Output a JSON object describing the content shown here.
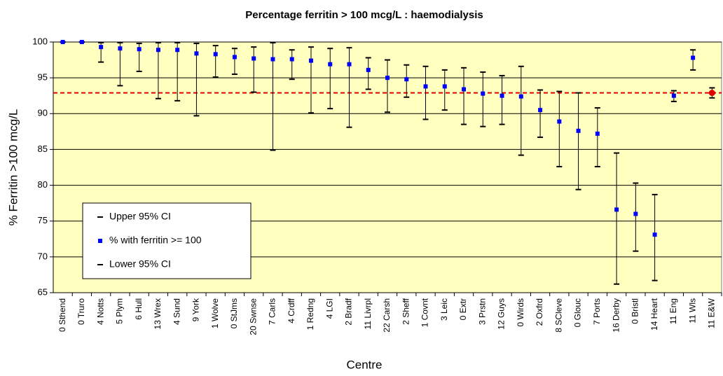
{
  "chart_data": {
    "type": "errorbar",
    "title": "Percentage ferritin > 100 mcg/L : haemodialysis",
    "x_label": "Centre",
    "y_label": "% Ferritin >100 mcg/L",
    "categories": [
      "0 Sthend",
      "0 Truro",
      "4 Notts",
      "5 Plym",
      "6 Hull",
      "13 Wrex",
      "4 Sund",
      "9 York",
      "1 Wolve",
      "0 StJms",
      "20 Swnse",
      "7 Carls",
      "4 Crdff",
      "1 Redng",
      "4 LGI",
      "2 Bradf",
      "11 Livrpl",
      "22 Carsh",
      "2 Sheff",
      "1 Covnt",
      "3 Leic",
      "0 Extr",
      "3 Prstn",
      "12 Guys",
      "0 Wirds",
      "2 Oxfrd",
      "8 SCleve",
      "0 Glouc",
      "7 Ports",
      "16 Derby",
      "0 Bristl",
      "14 Heart",
      "11 Eng",
      "11 Wls",
      "11 E&W"
    ],
    "series": [
      {
        "name": "Upper 95% CI",
        "color": "#000000",
        "values": [
          100,
          100,
          99.9,
          99.9,
          99.8,
          99.9,
          99.9,
          99.8,
          99.5,
          99.1,
          99.3,
          99.9,
          98.9,
          99.3,
          99.1,
          99.2,
          97.8,
          97.5,
          96.8,
          96.6,
          96.1,
          96.4,
          95.8,
          95.3,
          96.6,
          93.3,
          93.1,
          92.9,
          90.8,
          84.5,
          80.3,
          78.7,
          93.2,
          98.9,
          93.6
        ]
      },
      {
        "name": "% with ferritin >= 100",
        "color": "#0000ff",
        "values": [
          100,
          100,
          99.3,
          99.1,
          99.0,
          98.9,
          98.9,
          98.4,
          98.3,
          97.9,
          97.7,
          97.6,
          97.6,
          97.4,
          96.9,
          96.9,
          96.1,
          95.0,
          94.8,
          93.8,
          93.8,
          93.4,
          92.8,
          92.5,
          92.4,
          90.5,
          88.9,
          87.6,
          87.2,
          76.6,
          76.0,
          73.1,
          92.5,
          97.8,
          92.9
        ]
      },
      {
        "name": "Lower 95% CI",
        "color": "#000000",
        "values": [
          100,
          100,
          97.2,
          93.9,
          95.9,
          92.1,
          91.8,
          89.7,
          95.1,
          95.5,
          93.0,
          84.9,
          94.8,
          90.1,
          90.7,
          88.1,
          93.4,
          90.2,
          92.3,
          89.2,
          90.5,
          88.5,
          88.2,
          88.5,
          84.2,
          86.7,
          82.6,
          79.4,
          82.6,
          66.2,
          70.8,
          66.7,
          91.7,
          96.1,
          92.2
        ]
      }
    ],
    "highlight": {
      "index": 34,
      "color": "#e00000"
    },
    "reference_line": {
      "value": 92.9,
      "color": "#e00000"
    },
    "ylim": [
      65,
      100
    ],
    "yticks": [
      65,
      70,
      75,
      80,
      85,
      90,
      95,
      100
    ],
    "grid": true,
    "plot_background": "#ffffc0"
  }
}
